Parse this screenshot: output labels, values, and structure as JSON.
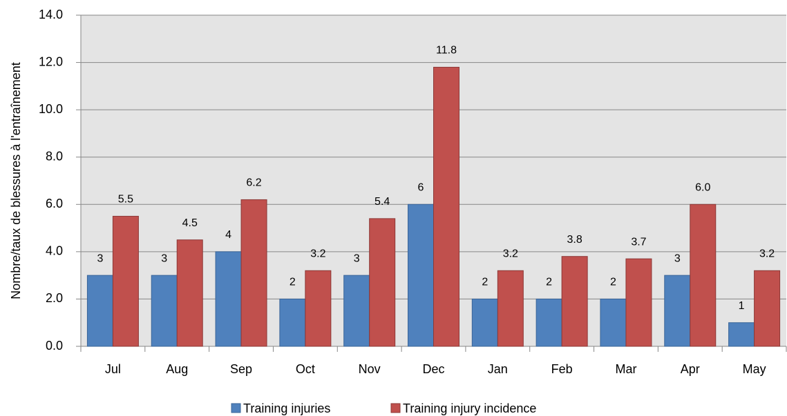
{
  "chart_data": {
    "type": "bar",
    "y_label": "Nombre/taux de blessures à l'entraînement",
    "categories": [
      "Jul",
      "Aug",
      "Sep",
      "Oct",
      "Nov",
      "Dec",
      "Jan",
      "Feb",
      "Mar",
      "Apr",
      "May"
    ],
    "series": [
      {
        "name": "Training injuries",
        "color": "#4f81bd",
        "values": [
          3,
          3,
          4,
          2,
          3,
          6,
          2,
          2,
          2,
          3,
          1
        ]
      },
      {
        "name": "Training injury incidence",
        "color": "#c0504d",
        "values": [
          5.5,
          4.5,
          6.2,
          3.2,
          5.4,
          11.8,
          3.2,
          3.8,
          3.7,
          6.0,
          3.2
        ],
        "value_labels": [
          "5.5",
          "4.5",
          "6.2",
          "3.2",
          "5.4",
          "11.8",
          "3.2",
          "3.8",
          "3.7",
          "6.0",
          "3.2"
        ]
      }
    ],
    "ylim": [
      0,
      14
    ],
    "yticks": [
      {
        "value": 0,
        "label": "0.0"
      },
      {
        "value": 2,
        "label": "2.0"
      },
      {
        "value": 4,
        "label": "4.0"
      },
      {
        "value": 6,
        "label": "6.0"
      },
      {
        "value": 8,
        "label": "8.0"
      },
      {
        "value": 10,
        "label": "10.0"
      },
      {
        "value": 12,
        "label": "12.0"
      },
      {
        "value": 14,
        "label": "14.0"
      }
    ],
    "grid": true,
    "legend": "bottom"
  }
}
